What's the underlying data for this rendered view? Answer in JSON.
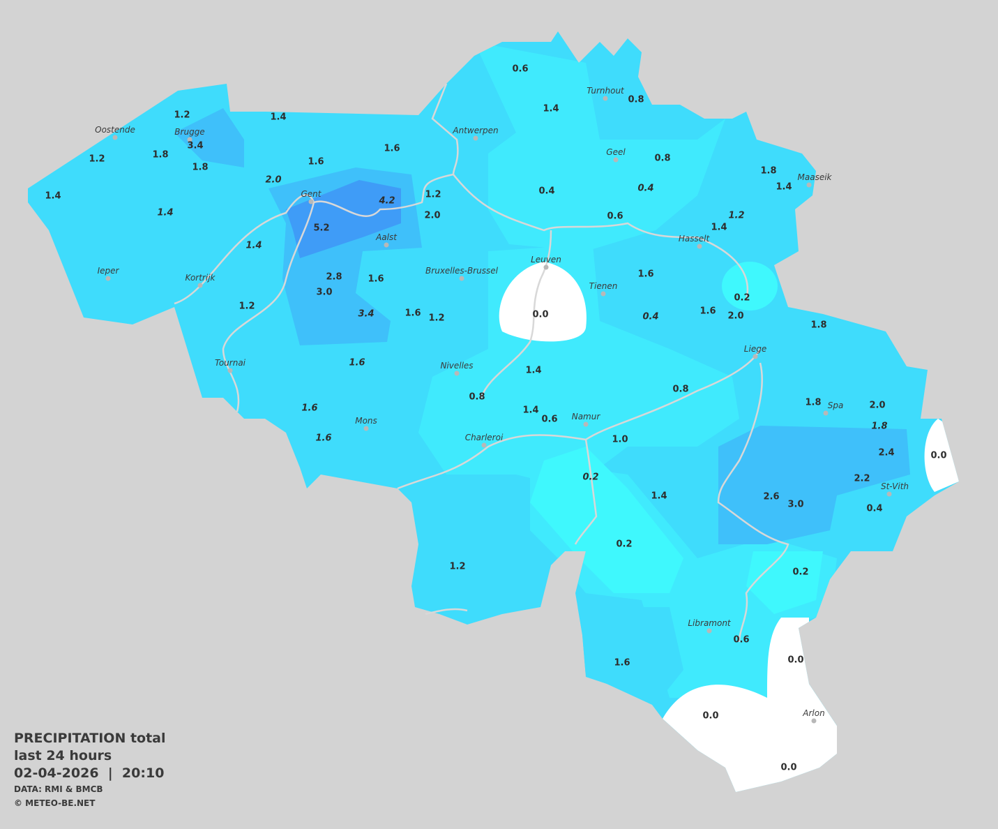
{
  "map": {
    "type": "precipitation contour map",
    "region": "Belgium",
    "colors": {
      "background": "#d3d3d3",
      "zero": "#ffffff",
      "low": "#3ff8fd",
      "light": "#40eafd",
      "medium": "#3fdcfc",
      "heavy": "#3fc0fa",
      "very_heavy": "#3f9cf7",
      "river": "#d8d8d8",
      "text": "#2d2d2d"
    },
    "cities": [
      "Oostende",
      "Brugge",
      "Gent",
      "Antwerpen",
      "Turnhout",
      "Geel",
      "Maaseik",
      "Hasselt",
      "Leuven",
      "Tienen",
      "Bruxelles-Brussel",
      "Aalst",
      "Kortrijk",
      "Ieper",
      "Tournai",
      "Nivelles",
      "Mons",
      "Charleroi",
      "Namur",
      "Liege",
      "Spa",
      "St-Vith",
      "Libramont",
      "Arlon"
    ],
    "values": [
      "0.6",
      "1.4",
      "0.8",
      "1.2",
      "3.4",
      "1.4",
      "1.2",
      "1.8",
      "1.8",
      "1.6",
      "1.6",
      "1.4",
      "2.0",
      "1.4",
      "1.4",
      "1.2",
      "4.2",
      "2.0",
      "5.2",
      "0.4",
      "0.8",
      "0.4",
      "1.8",
      "1.4",
      "0.6",
      "1.2",
      "1.4",
      "1.6",
      "0.0",
      "2.8",
      "3.0",
      "1.6",
      "3.4",
      "1.6",
      "1.2",
      "1.2",
      "0.2",
      "1.6",
      "2.0",
      "0.4",
      "1.8",
      "1.6",
      "1.4",
      "0.8",
      "0.8",
      "1.6",
      "1.4",
      "0.6",
      "1.6",
      "1.8",
      "2.0",
      "1.8",
      "1.0",
      "0.0",
      "2.4",
      "0.2",
      "2.2",
      "1.4",
      "2.6",
      "3.0",
      "0.4",
      "0.2",
      "1.2",
      "0.2",
      "0.6",
      "1.6",
      "0.0",
      "0.0",
      "0.0"
    ]
  },
  "legend": {
    "title": "PRECIPITATION total",
    "subtitle": "last 24 hours",
    "datetime": "02-04-2026  |  20:10",
    "source": "DATA: RMI & BMCB",
    "copyright": "© METEO-BE.NET"
  }
}
